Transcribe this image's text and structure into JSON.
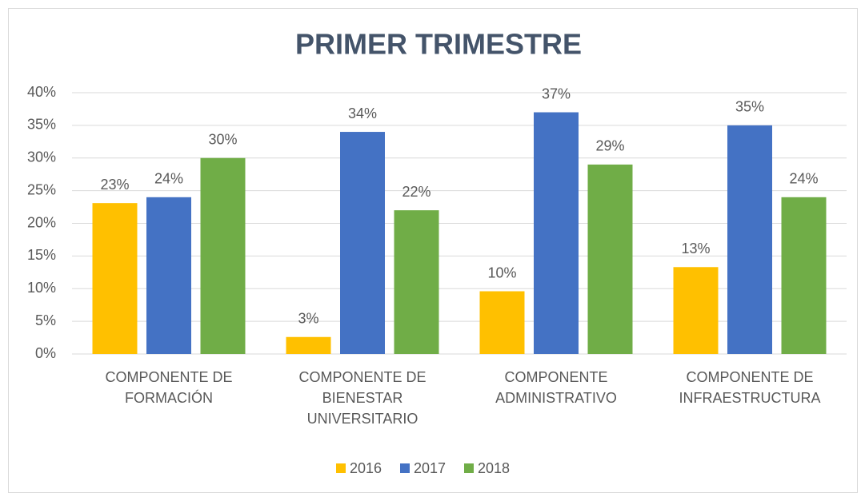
{
  "chart_data": {
    "type": "bar",
    "title": "PRIMER TRIMESTRE",
    "categories": [
      "COMPONENTE DE FORMACIÓN",
      "COMPONENTE DE BIENESTAR UNIVERSITARIO",
      "COMPONENTE ADMINISTRATIVO",
      "COMPONENTE DE INFRAESTRUCTURA"
    ],
    "series": [
      {
        "name": "2016",
        "color": "#ffc000",
        "values": [
          23.1,
          2.6,
          9.6,
          13.3
        ],
        "value_labels": [
          "23%",
          "3%",
          "10%",
          "13%"
        ]
      },
      {
        "name": "2017",
        "color": "#4472c4",
        "values": [
          24,
          34,
          37,
          35
        ],
        "value_labels": [
          "24%",
          "34%",
          "37%",
          "35%"
        ]
      },
      {
        "name": "2018",
        "color": "#70ad47",
        "values": [
          30,
          22,
          29,
          24
        ],
        "value_labels": [
          "30%",
          "22%",
          "29%",
          "24%"
        ]
      }
    ],
    "ylim": [
      0,
      40
    ],
    "yticks": [
      {
        "value": 0,
        "label": "0%"
      },
      {
        "value": 5,
        "label": "5%"
      },
      {
        "value": 10,
        "label": "10%"
      },
      {
        "value": 15,
        "label": "15%"
      },
      {
        "value": 20,
        "label": "20%"
      },
      {
        "value": 25,
        "label": "25%"
      },
      {
        "value": 30,
        "label": "30%"
      },
      {
        "value": 35,
        "label": "35%"
      },
      {
        "value": 40,
        "label": "40%"
      }
    ],
    "grid": true,
    "legend": "bottom"
  }
}
